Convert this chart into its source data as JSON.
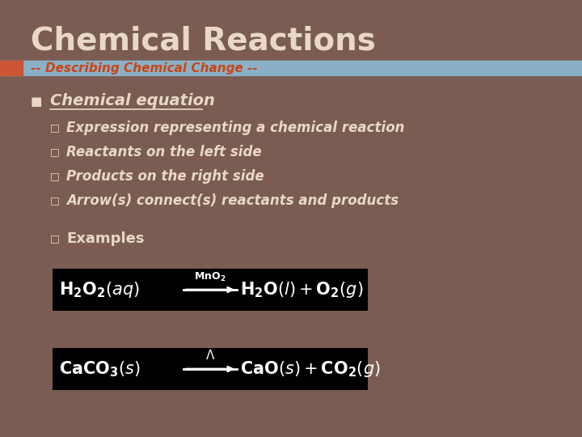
{
  "bg_color": "#7a5c52",
  "title": "Chemical Reactions",
  "subtitle": "-- Describing Chemical Change --",
  "title_color": "#e8d8c4",
  "subtitle_color": "#cc4411",
  "header_bar_color": "#8ab0c8",
  "bullet_color": "#e8d8c4",
  "white": "#ffffff",
  "black": "#000000",
  "orange_accent": "#cc5533",
  "bullet1": "Chemical equation",
  "sub_bullets": [
    "Expression representing a chemical reaction",
    "Reactants on the left side",
    "Products on the right side",
    "Arrow(s) connect(s) reactants and products"
  ],
  "examples_label": "Examples"
}
